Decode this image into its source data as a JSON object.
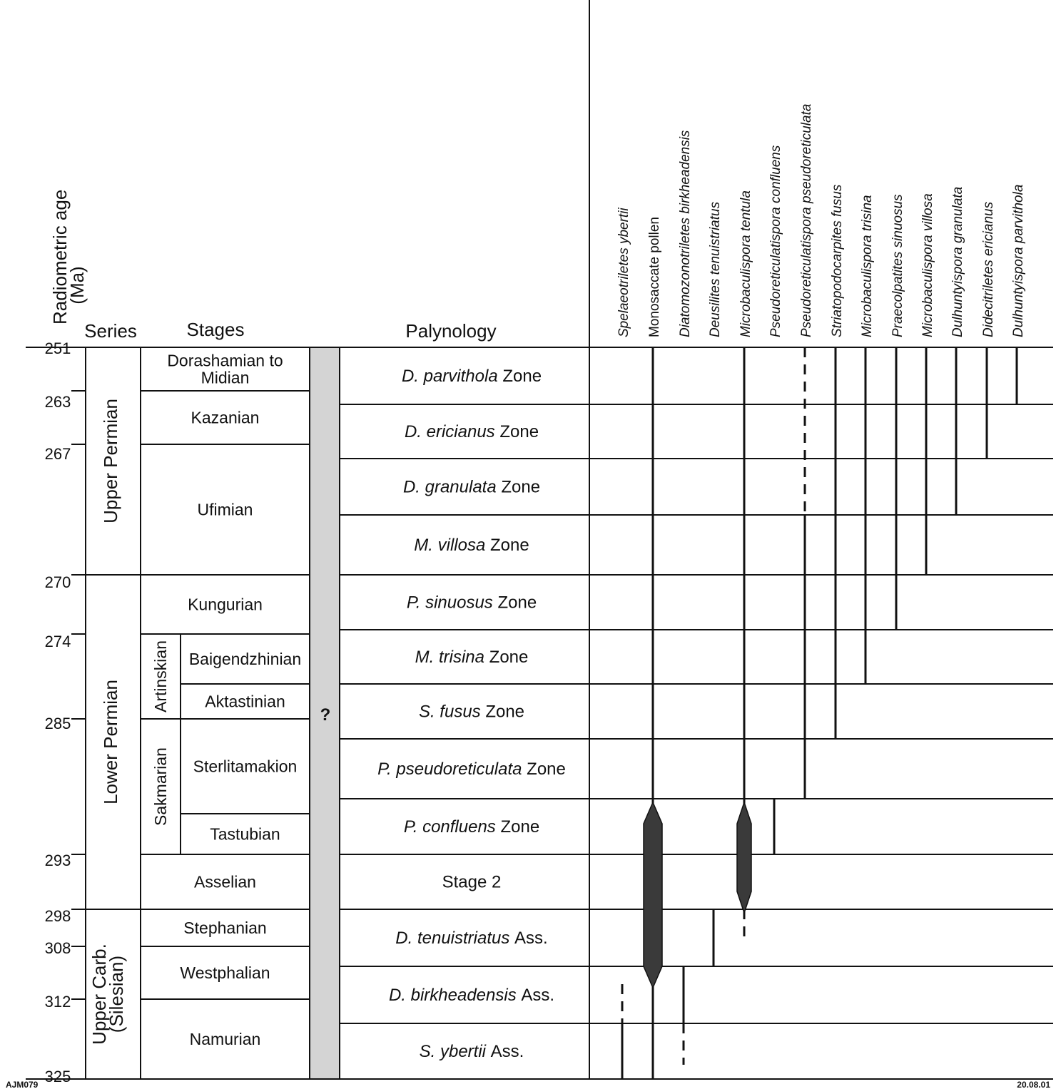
{
  "headers": {
    "age_line1": "Radiometric age",
    "age_line2": "(Ma)",
    "series": "Series",
    "stages": "Stages",
    "palynology": "Palynology"
  },
  "ages": [
    "251",
    "263",
    "267",
    "270",
    "274",
    "285",
    "293",
    "298",
    "308",
    "312",
    "325"
  ],
  "series": [
    {
      "lines": [
        "Upper Permian"
      ]
    },
    {
      "lines": [
        "Lower Permian"
      ]
    },
    {
      "lines": [
        "Upper Carb.",
        "(Silesian)"
      ]
    }
  ],
  "stages": [
    {
      "lines": [
        "Dorashamian to",
        "Midian"
      ]
    },
    {
      "lines": [
        "Kazanian"
      ]
    },
    {
      "lines": [
        "Ufimian"
      ]
    },
    {
      "lines": [
        "Kungurian"
      ]
    },
    {
      "lines": [
        "Baigendzhinian"
      ]
    },
    {
      "lines": [
        "Aktastinian"
      ]
    },
    {
      "lines": [
        "Sterlitamakion"
      ]
    },
    {
      "lines": [
        "Tastubian"
      ]
    },
    {
      "lines": [
        "Asselian"
      ]
    },
    {
      "lines": [
        "Stephanian"
      ]
    },
    {
      "lines": [
        "Westphalian"
      ]
    },
    {
      "lines": [
        "Namurian"
      ]
    }
  ],
  "substages": [
    "Artinskian",
    "Sakmarian"
  ],
  "question_mark": "?",
  "zones": [
    {
      "name": "D. parvithola",
      "suffix": "Zone"
    },
    {
      "name": "D. ericianus",
      "suffix": "Zone"
    },
    {
      "name": "D. granulata",
      "suffix": "Zone"
    },
    {
      "name": "M. villosa",
      "suffix": "Zone"
    },
    {
      "name": "P. sinuosus",
      "suffix": "Zone"
    },
    {
      "name": "M. trisina",
      "suffix": "Zone"
    },
    {
      "name": "S. fusus",
      "suffix": "Zone"
    },
    {
      "name": "P. pseudoreticulata",
      "suffix": "Zone"
    },
    {
      "name": "P. confluens",
      "suffix": "Zone"
    },
    {
      "name": "",
      "suffix": "Stage 2"
    },
    {
      "name": "D. tenuistriatus",
      "suffix": "Ass."
    },
    {
      "name": "D. birkheadensis",
      "suffix": "Ass."
    },
    {
      "name": "S. ybertii",
      "suffix": "Ass."
    }
  ],
  "taxa": [
    {
      "name": "Spelaeotriletes ybertii",
      "italic": true,
      "from_zone": 11,
      "to_zone": 12,
      "dashed_to_zone": 11,
      "style": "line"
    },
    {
      "name": "Monosaccate pollen",
      "italic": false,
      "from_zone": 0,
      "to_zone": 12,
      "peak_from_zone": 8,
      "peak_to_zone": 11,
      "style": "thick"
    },
    {
      "name": "Diatomozonotriletes birkheadensis",
      "italic": true,
      "from_zone": 11,
      "to_zone": 12,
      "dashed_from_zone": 12,
      "style": "line"
    },
    {
      "name": "Deusilites tenuistriatus",
      "italic": true,
      "from_zone": 10,
      "to_zone": 10,
      "style": "line"
    },
    {
      "name": "Microbaculispora tentula",
      "italic": true,
      "from_zone": 0,
      "to_zone": 10,
      "peak_from_zone": 8,
      "peak_to_zone": 9,
      "dashed_from_zone": 10,
      "style": "thick"
    },
    {
      "name": "Pseudoreticulatispora confluens",
      "italic": true,
      "from_zone": 8,
      "to_zone": 8,
      "style": "line"
    },
    {
      "name": "Pseudoreticulatispora pseudoreticulata",
      "italic": true,
      "from_zone": 0,
      "to_zone": 7,
      "dashed_to_zone": 2,
      "style": "line"
    },
    {
      "name": "Striatopodocarpites fusus",
      "italic": true,
      "from_zone": 0,
      "to_zone": 6,
      "style": "line"
    },
    {
      "name": "Microbaculispora trisina",
      "italic": true,
      "from_zone": 0,
      "to_zone": 5,
      "style": "line"
    },
    {
      "name": "Praecolpatites sinuosus",
      "italic": true,
      "from_zone": 0,
      "to_zone": 4,
      "style": "line"
    },
    {
      "name": "Microbaculispora villosa",
      "italic": true,
      "from_zone": 0,
      "to_zone": 3,
      "style": "line"
    },
    {
      "name": "Dulhuntyispora granulata",
      "italic": true,
      "from_zone": 0,
      "to_zone": 2,
      "style": "line"
    },
    {
      "name": "Didecitriletes ericianus",
      "italic": true,
      "from_zone": 0,
      "to_zone": 1,
      "style": "line"
    },
    {
      "name": "Dulhuntyispora parvithola",
      "italic": true,
      "from_zone": 0,
      "to_zone": 0,
      "style": "line"
    }
  ],
  "footer": {
    "left": "AJM079",
    "right": "20.08.01"
  }
}
